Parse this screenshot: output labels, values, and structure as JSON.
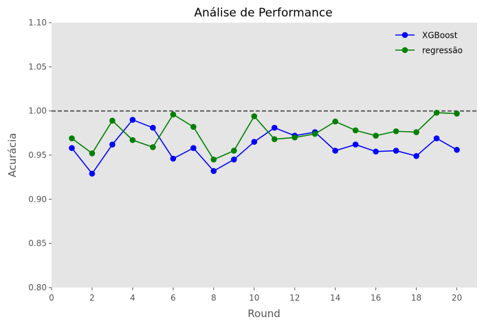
{
  "chart_data": {
    "type": "line",
    "title": "Análise de Performance",
    "xlabel": "Round",
    "ylabel": "Acurácia",
    "xlim": [
      0,
      21
    ],
    "ylim": [
      0.8,
      1.1
    ],
    "xticks": [
      0,
      2,
      4,
      6,
      8,
      10,
      12,
      14,
      16,
      18,
      20
    ],
    "yticks": [
      0.8,
      0.85,
      0.9,
      0.95,
      1.0,
      1.05,
      1.1
    ],
    "xtick_labels": [
      "0",
      "2",
      "4",
      "6",
      "8",
      "10",
      "12",
      "14",
      "16",
      "18",
      "20"
    ],
    "ytick_labels": [
      "0.80",
      "0.85",
      "0.90",
      "0.95",
      "1.00",
      "1.05",
      "1.10"
    ],
    "grid": false,
    "legend_position": "top-right",
    "background_color": "#e5e5e5",
    "reference_line": {
      "y": 1.0,
      "style": "dashed",
      "color": "#444444"
    },
    "x": [
      1,
      2,
      3,
      4,
      5,
      6,
      7,
      8,
      9,
      10,
      11,
      12,
      13,
      14,
      15,
      16,
      17,
      18,
      19,
      20
    ],
    "series": [
      {
        "name": "XGBoost",
        "color": "#0000ff",
        "marker": "circle",
        "values": [
          0.958,
          0.929,
          0.962,
          0.99,
          0.981,
          0.946,
          0.958,
          0.932,
          0.945,
          0.965,
          0.981,
          0.972,
          0.976,
          0.955,
          0.962,
          0.954,
          0.955,
          0.949,
          0.969,
          0.956
        ]
      },
      {
        "name": "regressão",
        "color": "#008000",
        "marker": "circle",
        "values": [
          0.969,
          0.952,
          0.989,
          0.967,
          0.959,
          0.996,
          0.982,
          0.945,
          0.955,
          0.994,
          0.968,
          0.97,
          0.974,
          0.988,
          0.978,
          0.972,
          0.977,
          0.976,
          0.998,
          0.997
        ]
      }
    ]
  }
}
